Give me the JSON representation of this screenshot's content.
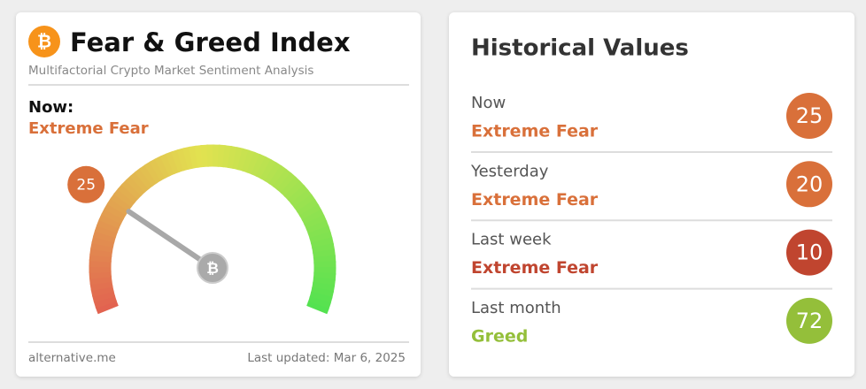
{
  "gauge": {
    "title": "Fear & Greed Index",
    "subtitle": "Multifactorial Crypto Market Sentiment Analysis",
    "now_label": "Now:",
    "classification": "Extreme Fear",
    "value": 25,
    "range": [
      0,
      100
    ],
    "color": "#d9703a",
    "source": "alternative.me",
    "updated": "Last updated: Mar 6, 2025"
  },
  "history": {
    "title": "Historical Values",
    "rows": [
      {
        "label": "Now",
        "classification": "Extreme Fear",
        "value": 25,
        "color": "#d9703a"
      },
      {
        "label": "Yesterday",
        "classification": "Extreme Fear",
        "value": 20,
        "color": "#d9703a"
      },
      {
        "label": "Last week",
        "classification": "Extreme Fear",
        "value": 10,
        "color": "#c0452f"
      },
      {
        "label": "Last month",
        "classification": "Greed",
        "value": 72,
        "color": "#94bf3a"
      }
    ]
  }
}
